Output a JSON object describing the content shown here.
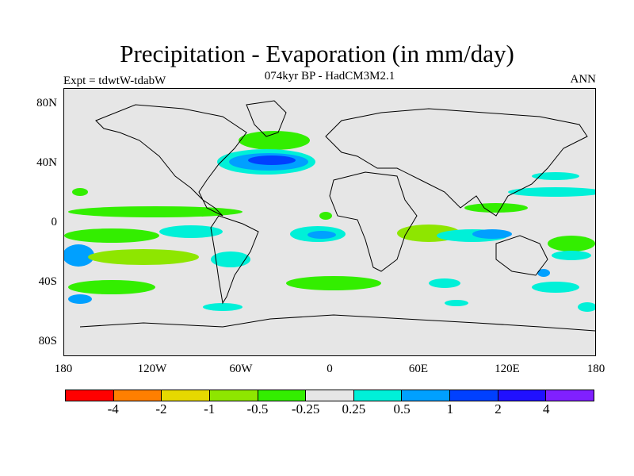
{
  "title": "Precipitation - Evaporation (in mm/day)",
  "subtitle": "074kyr BP - HadCM3M2.1",
  "experiment": "Expt = tdwtW-tdabW",
  "period": "ANN",
  "latitude_labels": [
    "80N",
    "40N",
    "0",
    "40S",
    "80S"
  ],
  "longitude_labels": [
    "180",
    "120W",
    "60W",
    "0",
    "60E",
    "120E",
    "180"
  ],
  "colorbar": {
    "colors": [
      "#ff0000",
      "#ff7f00",
      "#e6d800",
      "#8ee600",
      "#33ee00",
      "#e6e6e6",
      "#00f0d8",
      "#00a0ff",
      "#0040ff",
      "#2010ff",
      "#8020ff"
    ],
    "labels": [
      "-4",
      "-2",
      "-1",
      "-0.5",
      "-0.25",
      "0.25",
      "0.5",
      "1",
      "2",
      "4"
    ]
  }
}
